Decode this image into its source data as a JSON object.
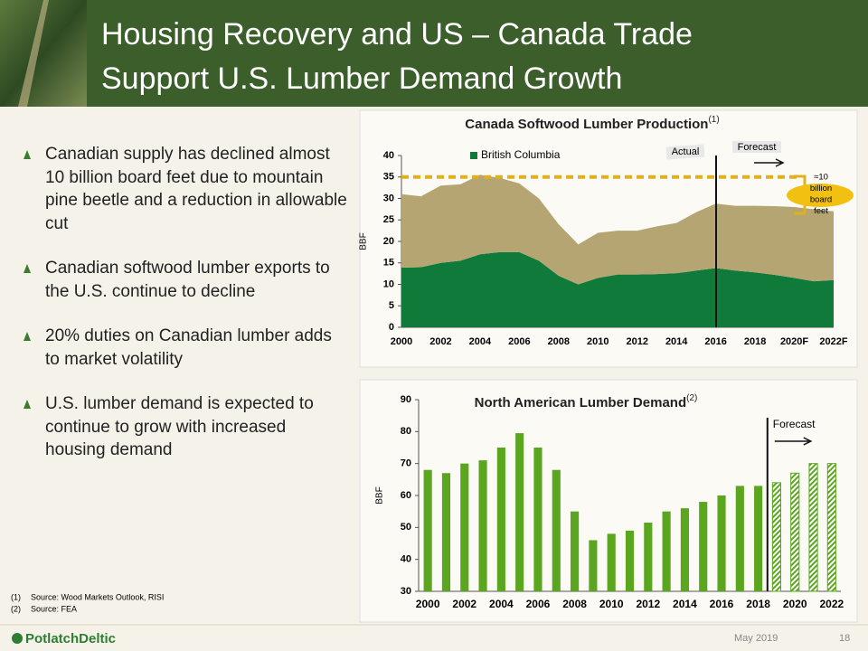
{
  "header": {
    "title_lines": [
      "Housing Recovery and US – Canada Trade",
      "Support U.S. Lumber Demand Growth"
    ]
  },
  "bullets": [
    "Canadian supply has declined almost 10 billion board feet due to mountain pine beetle and a reduction in allowable cut",
    "Canadian softwood lumber exports to the U.S. continue to decline",
    "20% duties on Canadian lumber adds to market volatility",
    "U.S. lumber demand is expected to continue to grow with increased housing demand"
  ],
  "footnotes": [
    {
      "mark": "(1)",
      "text": "Source: Wood Markets Outlook, RISI"
    },
    {
      "mark": "(2)",
      "text": "Source: FEA"
    }
  ],
  "footer": {
    "logo": "PotlatchDeltic",
    "date": "May 2019",
    "page": "18"
  },
  "chart_data": [
    {
      "type": "area",
      "title": "Canada Softwood Lumber Production",
      "title_note": "(1)",
      "y_label": "BBF",
      "categories": [
        "2000",
        null,
        "2002",
        null,
        "2004",
        null,
        "2006",
        null,
        "2008",
        null,
        "2010",
        null,
        "2012",
        null,
        "2014",
        null,
        "2016",
        null,
        "2018",
        null,
        "2020F",
        null,
        "2022F"
      ],
      "series": [
        {
          "name": "British Columbia",
          "color": "#0f7a3a",
          "values": [
            13.9,
            14,
            15,
            15.5,
            17,
            17.5,
            17.5,
            15.5,
            12,
            10,
            11.5,
            12.3,
            12.3,
            12.4,
            12.6,
            13.2,
            13.8,
            13.2,
            12.8,
            12.2,
            11.5,
            10.7,
            11
          ]
        },
        {
          "color": "#b4a572",
          "values": [
            17.1,
            16.5,
            18,
            17.8,
            18.5,
            17.3,
            16,
            14.5,
            12,
            9.3,
            10.5,
            10.2,
            10.2,
            11.1,
            11.7,
            13.6,
            15,
            15.1,
            15.5,
            16,
            16.5,
            16.8,
            16
          ]
        }
      ],
      "ylim": [
        0,
        40
      ],
      "yticks": [
        0,
        5,
        10,
        15,
        20,
        25,
        30,
        35,
        40
      ],
      "hline": 35,
      "annotations": [
        "Actual",
        "Forecast"
      ],
      "callout": [
        "≈10",
        "billion",
        "board",
        "feet"
      ]
    },
    {
      "type": "bar",
      "title": "North American Lumber Demand",
      "title_note": "(2)",
      "y_label": "BBF",
      "categories": [
        "2000",
        null,
        "2002",
        null,
        "2004",
        null,
        "2006",
        null,
        "2008",
        null,
        "2010",
        null,
        "2012",
        null,
        "2014",
        null,
        "2016",
        null,
        "2018",
        null,
        "2020",
        null,
        "2022"
      ],
      "series": [
        {
          "color": "#5aa61e",
          "values": [
            68,
            67,
            70,
            71,
            75,
            79.5,
            75,
            68,
            55,
            46,
            48,
            49,
            51.5,
            55,
            56,
            58,
            60,
            63,
            63,
            null,
            null,
            null,
            null
          ]
        },
        {
          "color": "#5aa61e",
          "pattern": "hatch",
          "values": [
            null,
            null,
            null,
            null,
            null,
            null,
            null,
            null,
            null,
            null,
            null,
            null,
            null,
            null,
            null,
            null,
            null,
            null,
            null,
            64,
            67,
            70,
            70
          ]
        }
      ],
      "ylim": [
        30,
        90
      ],
      "yticks": [
        30,
        40,
        50,
        60,
        70,
        80,
        90
      ],
      "annotations": [
        "Forecast"
      ]
    }
  ]
}
